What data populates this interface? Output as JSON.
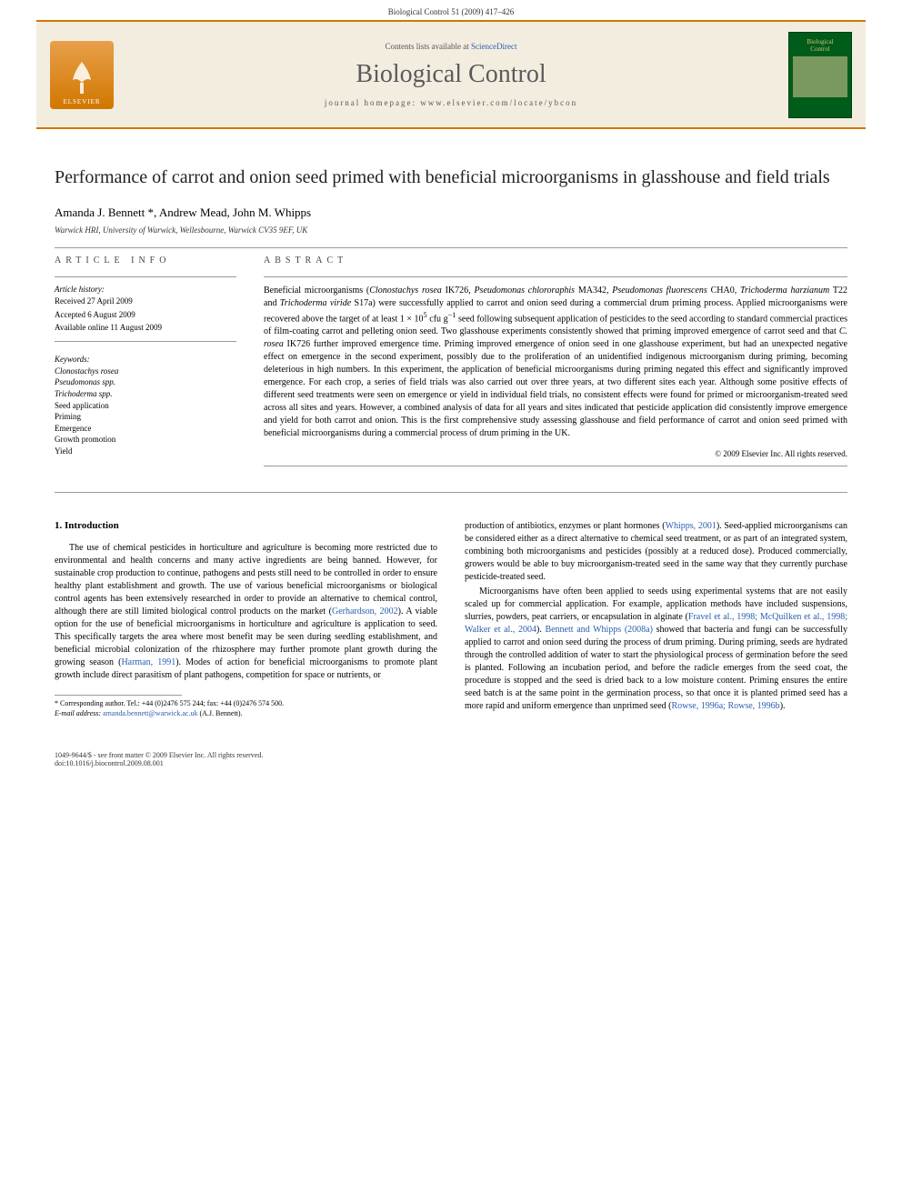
{
  "header": {
    "citation": "Biological Control 51 (2009) 417–426"
  },
  "banner": {
    "elsevier_label": "ELSEVIER",
    "contents_prefix": "Contents lists available at ",
    "contents_link": "ScienceDirect",
    "journal_name": "Biological Control",
    "homepage": "journal homepage: www.elsevier.com/locate/ybcon",
    "cover_text_top": "Biological",
    "cover_text_bottom": "Control"
  },
  "article": {
    "title": "Performance of carrot and onion seed primed with beneficial microorganisms in glasshouse and field trials",
    "authors": "Amanda J. Bennett *, Andrew Mead, John M. Whipps",
    "affiliation": "Warwick HRI, University of Warwick, Wellesbourne, Warwick CV35 9EF, UK"
  },
  "info": {
    "heading": "ARTICLE INFO",
    "history_label": "Article history:",
    "received": "Received 27 April 2009",
    "accepted": "Accepted 6 August 2009",
    "online": "Available online 11 August 2009",
    "keywords_label": "Keywords:",
    "keywords": [
      {
        "text": "Clonostachys rosea",
        "italic": true
      },
      {
        "text": "Pseudomonas spp.",
        "italic": true
      },
      {
        "text": "Trichoderma spp.",
        "italic": true
      },
      {
        "text": "Seed application",
        "italic": false
      },
      {
        "text": "Priming",
        "italic": false
      },
      {
        "text": "Emergence",
        "italic": false
      },
      {
        "text": "Growth promotion",
        "italic": false
      },
      {
        "text": "Yield",
        "italic": false
      }
    ]
  },
  "abstract": {
    "heading": "ABSTRACT",
    "text_html": "Beneficial microorganisms (<i>Clonostachys rosea</i> IK726, <i>Pseudomonas chlororaphis</i> MA342, <i>Pseudomonas fluorescens</i> CHA0, <i>Trichoderma harzianum</i> T22 and <i>Trichoderma viride</i> S17a) were successfully applied to carrot and onion seed during a commercial drum priming process. Applied microorganisms were recovered above the target of at least 1 × 10<sup>5</sup> cfu g<sup>−1</sup> seed following subsequent application of pesticides to the seed according to standard commercial practices of film-coating carrot and pelleting onion seed. Two glasshouse experiments consistently showed that priming improved emergence of carrot seed and that <i>C. rosea</i> IK726 further improved emergence time. Priming improved emergence of onion seed in one glasshouse experiment, but had an unexpected negative effect on emergence in the second experiment, possibly due to the proliferation of an unidentified indigenous microorganism during priming, becoming deleterious in high numbers. In this experiment, the application of beneficial microorganisms during priming negated this effect and significantly improved emergence. For each crop, a series of field trials was also carried out over three years, at two different sites each year. Although some positive effects of different seed treatments were seen on emergence or yield in individual field trials, no consistent effects were found for primed or microorganism-treated seed across all sites and years. However, a combined analysis of data for all years and sites indicated that pesticide application did consistently improve emergence and yield for both carrot and onion. This is the first comprehensive study assessing glasshouse and field performance of carrot and onion seed primed with beneficial microorganisms during a commercial process of drum priming in the UK.",
    "copyright": "© 2009 Elsevier Inc. All rights reserved."
  },
  "body": {
    "section_heading": "1. Introduction",
    "col1_para1_html": "The use of chemical pesticides in horticulture and agriculture is becoming more restricted due to environmental and health concerns and many active ingredients are being banned. However, for sustainable crop production to continue, pathogens and pests still need to be controlled in order to ensure healthy plant establishment and growth. The use of various beneficial microorganisms or biological control agents has been extensively researched in order to provide an alternative to chemical control, although there are still limited biological control products on the market (<a>Gerhardson, 2002</a>). A viable option for the use of beneficial microorganisms in horticulture and agriculture is application to seed. This specifically targets the area where most benefit may be seen during seedling establishment, and beneficial microbial colonization of the rhizosphere may further promote plant growth during the growing season (<a>Harman, 1991</a>). Modes of action for beneficial microorganisms to promote plant growth include direct parasitism of plant pathogens, competition for space or nutrients, or",
    "col2_para1_html": "production of antibiotics, enzymes or plant hormones (<a>Whipps, 2001</a>). Seed-applied microorganisms can be considered either as a direct alternative to chemical seed treatment, or as part of an integrated system, combining both microorganisms and pesticides (possibly at a reduced dose). Produced commercially, growers would be able to buy microorganism-treated seed in the same way that they currently purchase pesticide-treated seed.",
    "col2_para2_html": "Microorganisms have often been applied to seeds using experimental systems that are not easily scaled up for commercial application. For example, application methods have included suspensions, slurries, powders, peat carriers, or encapsulation in alginate (<a>Fravel et al., 1998; McQuilken et al., 1998; Walker et al., 2004</a>). <a>Bennett and Whipps (2008a)</a> showed that bacteria and fungi can be successfully applied to carrot and onion seed during the process of drum priming. During priming, seeds are hydrated through the controlled addition of water to start the physiological process of germination before the seed is planted. Following an incubation period, and before the radicle emerges from the seed coat, the procedure is stopped and the seed is dried back to a low moisture content. Priming ensures the entire seed batch is at the same point in the germination process, so that once it is planted primed seed has a more rapid and uniform emergence than unprimed seed (<a>Rowse, 1996a; Rowse, 1996b</a>)."
  },
  "footnote": {
    "corresponding": "* Corresponding author. Tel.: +44 (0)2476 575 244; fax: +44 (0)2476 574 500.",
    "email_label": "E-mail address:",
    "email": "amanda.bennett@warwick.ac.uk",
    "email_suffix": "(A.J. Bennett)."
  },
  "footer": {
    "line1": "1049-9644/$ - see front matter © 2009 Elsevier Inc. All rights reserved.",
    "line2": "doi:10.1016/j.biocontrol.2009.08.001"
  },
  "colors": {
    "accent_orange": "#d17700",
    "banner_bg": "#f3ede0",
    "link_blue": "#2a5db0",
    "cover_green": "#005c1a"
  }
}
